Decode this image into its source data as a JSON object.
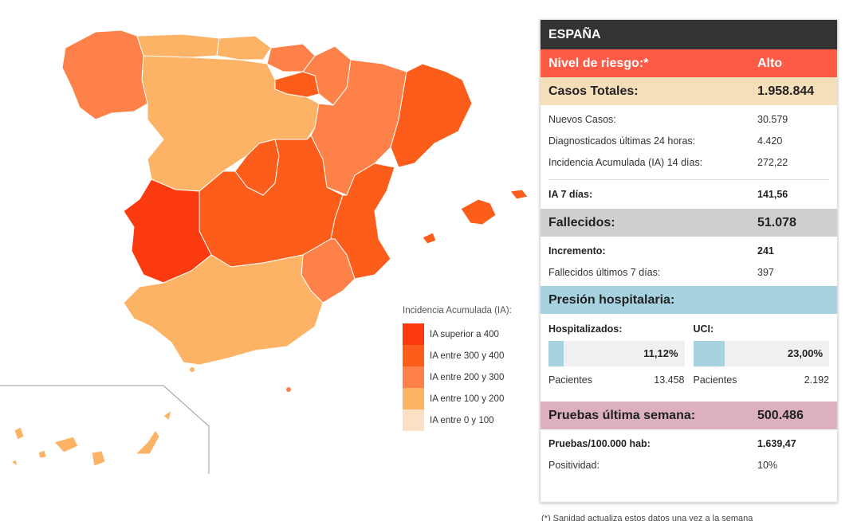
{
  "legend": {
    "title": "Incidencia Acumulada (IA):",
    "items": [
      {
        "label": "IA superior a 400",
        "color": "#fb3a10"
      },
      {
        "label": "IA entre 300 y 400",
        "color": "#fd5d1b"
      },
      {
        "label": "IA entre 200 y 300",
        "color": "#fd8149"
      },
      {
        "label": "IA entre 100 y 200",
        "color": "#fdb366"
      },
      {
        "label": "IA entre 0 y 100",
        "color": "#fbe0c6"
      }
    ]
  },
  "panel": {
    "title": "ESPAÑA",
    "risk": {
      "label": "Nivel de riesgo:*",
      "value": "Alto"
    },
    "casos": {
      "label": "Casos Totales:",
      "value": "1.958.844",
      "rows": [
        {
          "label": "Nuevos Casos:",
          "value": "30.579"
        },
        {
          "label": "Diagnosticados últimas 24 horas:",
          "value": "4.420"
        },
        {
          "label": "Incidencia Acumulada (IA) 14 días:",
          "value": "272,22"
        }
      ],
      "ia7": {
        "label": "IA 7 días:",
        "value": "141,56"
      }
    },
    "fallecidos": {
      "label": "Fallecidos:",
      "value": "51.078",
      "rows": [
        {
          "label": "Incremento:",
          "value": "241"
        },
        {
          "label": "Fallecidos últimos 7 días:",
          "value": "397"
        }
      ]
    },
    "presion": {
      "label": "Presión hospitalaria:",
      "hosp": {
        "title": "Hospitalizados:",
        "pct": "11,12%",
        "fraction": 0.1112,
        "patients_label": "Pacientes",
        "patients": "13.458"
      },
      "uci": {
        "title": "UCI:",
        "pct": "23,00%",
        "fraction": 0.23,
        "patients_label": "Pacientes",
        "patients": "2.192"
      }
    },
    "pruebas": {
      "label": "Pruebas última semana:",
      "value": "500.486",
      "rows": [
        {
          "label": "Pruebas/100.000 hab:",
          "value": "1.639,47"
        },
        {
          "label": "Positividad:",
          "value": "10%"
        }
      ]
    }
  },
  "footnote": "(*) Sanidad actualiza estos datos una vez a la semana",
  "colors": {
    "ia_over_400": "#fb3a10",
    "ia_300_400": "#fd5d1b",
    "ia_200_300": "#fd8149",
    "ia_100_200": "#fdb366",
    "ia_0_100": "#fbe0c6"
  }
}
